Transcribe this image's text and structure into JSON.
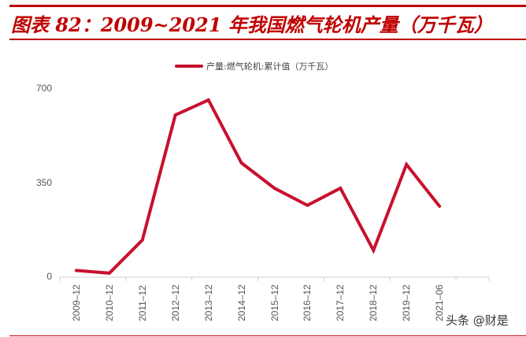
{
  "header": {
    "title": "图表 82：2009~2021 年我国燃气轮机产量（万千瓦）"
  },
  "legend": {
    "label": "产量:燃气轮机:累计值（万千瓦）",
    "color": "#c8102e"
  },
  "watermark": "头条 @财是",
  "colors": {
    "accent": "#c00000",
    "line": "#c8102e",
    "axis": "#d0d0d0",
    "tick_text": "#555555"
  },
  "y_ticks": [
    "700",
    "350",
    "0"
  ],
  "x_ticks": [
    "2009-12",
    "2010-12",
    "2011-12",
    "2012-12",
    "2013-12",
    "2014-12",
    "2015-12",
    "2016-12",
    "2017-12",
    "2018-12",
    "2019-12",
    "2021-06"
  ],
  "chart_data": {
    "type": "line",
    "title": "图表 82：2009~2021 年我国燃气轮机产量（万千瓦）",
    "xlabel": "",
    "ylabel": "",
    "categories": [
      "2009-12",
      "2010-12",
      "2011-12",
      "2012-12",
      "2013-12",
      "2014-12",
      "2015-12",
      "2016-12",
      "2017-12",
      "2018-12",
      "2019-12",
      "2021-06"
    ],
    "series": [
      {
        "name": "产量:燃气轮机:累计值（万千瓦）",
        "values": [
          25,
          15,
          138,
          603,
          659,
          425,
          331,
          267,
          331,
          100,
          419,
          264
        ]
      }
    ],
    "ylim": [
      0,
      700
    ],
    "yticks": [
      0,
      350,
      700
    ],
    "grid": false,
    "legend_position": "top"
  }
}
